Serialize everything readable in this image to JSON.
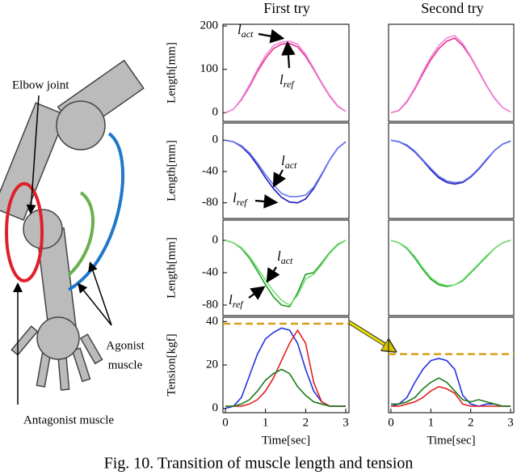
{
  "figure": {
    "column_titles": [
      "First try",
      "Second try"
    ],
    "diagram": {
      "elbow": "Elbow joint",
      "agonist": [
        "Agonist",
        "muscle"
      ],
      "antagonist": "Antagonist muscle"
    },
    "caption": "Fig. 10.  Transition of muscle length and tension"
  },
  "chart_data": [
    {
      "type": "line",
      "ylabel": "Length[mm]",
      "xlim": [
        -0.06,
        3.08
      ],
      "ylim": [
        -20,
        204
      ],
      "yticks": [
        0,
        100,
        200
      ],
      "x": [
        0,
        0.2,
        0.4,
        0.6,
        0.8,
        1.0,
        1.2,
        1.4,
        1.6,
        1.8,
        2.0,
        2.2,
        2.4,
        2.6,
        2.8,
        3.0
      ],
      "series": [
        {
          "color": "#e8308a",
          "values": [
            0,
            8,
            30,
            60,
            95,
            125,
            148,
            158,
            160,
            152,
            130,
            100,
            68,
            38,
            15,
            3
          ]
        },
        {
          "color": "#ee88dd",
          "values": [
            0,
            8,
            32,
            64,
            100,
            132,
            155,
            163,
            165,
            158,
            135,
            103,
            70,
            40,
            16,
            3
          ]
        }
      ],
      "annotations": [
        {
          "text": "l",
          "sub": "act"
        },
        {
          "text": "l",
          "sub": "ref"
        }
      ]
    },
    {
      "type": "line",
      "xlim": [
        -0.06,
        3.08
      ],
      "ylim": [
        -20,
        204
      ],
      "x": [
        0,
        0.2,
        0.4,
        0.6,
        0.8,
        1.0,
        1.2,
        1.4,
        1.6,
        1.8,
        2.0,
        2.2,
        2.4,
        2.6,
        2.8,
        3.0
      ],
      "series": [
        {
          "color": "#e8308a",
          "values": [
            0,
            5,
            25,
            55,
            90,
            122,
            148,
            165,
            172,
            155,
            128,
            95,
            62,
            33,
            12,
            2
          ]
        },
        {
          "color": "#ee88dd",
          "values": [
            0,
            6,
            27,
            58,
            95,
            128,
            155,
            172,
            178,
            160,
            130,
            97,
            63,
            34,
            12,
            2
          ]
        }
      ]
    },
    {
      "type": "line",
      "ylabel": "Length[mm]",
      "xlim": [
        -0.06,
        3.08
      ],
      "ylim": [
        -100,
        22
      ],
      "yticks": [
        0,
        -40,
        -80
      ],
      "x": [
        0,
        0.2,
        0.4,
        0.6,
        0.8,
        1.0,
        1.2,
        1.4,
        1.6,
        1.8,
        2.0,
        2.2,
        2.4,
        2.6,
        2.8,
        3.0
      ],
      "series": [
        {
          "color": "#1a1ab8",
          "values": [
            0,
            -2,
            -8,
            -18,
            -32,
            -48,
            -62,
            -73,
            -79,
            -80,
            -75,
            -62,
            -44,
            -25,
            -10,
            -2
          ]
        },
        {
          "color": "#6677ee",
          "values": [
            0,
            -2,
            -7,
            -16,
            -29,
            -44,
            -57,
            -68,
            -72,
            -72,
            -70,
            -60,
            -43,
            -25,
            -10,
            -2
          ]
        }
      ],
      "annotations": [
        {
          "text": "l",
          "sub": "act"
        },
        {
          "text": "l",
          "sub": "ref"
        }
      ]
    },
    {
      "type": "line",
      "xlim": [
        -0.06,
        3.08
      ],
      "ylim": [
        -100,
        22
      ],
      "x": [
        0,
        0.2,
        0.4,
        0.6,
        0.8,
        1.0,
        1.2,
        1.4,
        1.6,
        1.8,
        2.0,
        2.2,
        2.4,
        2.6,
        2.8,
        3.0
      ],
      "series": [
        {
          "color": "#1a1ab8",
          "values": [
            0,
            -2,
            -7,
            -15,
            -26,
            -38,
            -48,
            -54,
            -56,
            -54,
            -47,
            -37,
            -25,
            -13,
            -5,
            -1
          ]
        },
        {
          "color": "#6677ee",
          "values": [
            0,
            -2,
            -6,
            -14,
            -25,
            -36,
            -46,
            -52,
            -54,
            -53,
            -46,
            -36,
            -24,
            -13,
            -5,
            -1
          ]
        }
      ]
    },
    {
      "type": "line",
      "ylabel": "Length[mm]",
      "xlim": [
        -0.06,
        3.08
      ],
      "ylim": [
        -93,
        25
      ],
      "yticks": [
        0,
        -40,
        -80
      ],
      "x": [
        0,
        0.2,
        0.4,
        0.6,
        0.8,
        1.0,
        1.2,
        1.4,
        1.6,
        1.8,
        2.0,
        2.2,
        2.4,
        2.6,
        2.8,
        3.0
      ],
      "series": [
        {
          "color": "#1f9e1f",
          "values": [
            0,
            -3,
            -10,
            -22,
            -38,
            -55,
            -70,
            -80,
            -82,
            -65,
            -42,
            -40,
            -28,
            -15,
            -5,
            0
          ]
        },
        {
          "color": "#77e077",
          "values": [
            0,
            -3,
            -9,
            -20,
            -34,
            -49,
            -63,
            -74,
            -80,
            -68,
            -48,
            -42,
            -30,
            -16,
            -6,
            0
          ]
        }
      ],
      "annotations": [
        {
          "text": "l",
          "sub": "act"
        },
        {
          "text": "l",
          "sub": "ref"
        }
      ]
    },
    {
      "type": "line",
      "xlim": [
        -0.06,
        3.08
      ],
      "ylim": [
        -93,
        25
      ],
      "x": [
        0,
        0.2,
        0.4,
        0.6,
        0.8,
        1.0,
        1.2,
        1.4,
        1.6,
        1.8,
        2.0,
        2.2,
        2.4,
        2.6,
        2.8,
        3.0
      ],
      "series": [
        {
          "color": "#1f9e1f",
          "values": [
            0,
            -3,
            -10,
            -22,
            -36,
            -48,
            -55,
            -57,
            -55,
            -50,
            -40,
            -30,
            -20,
            -10,
            -3,
            0
          ]
        },
        {
          "color": "#77e077",
          "values": [
            0,
            -3,
            -9,
            -20,
            -34,
            -46,
            -53,
            -56,
            -55,
            -49,
            -39,
            -29,
            -19,
            -10,
            -3,
            0
          ]
        }
      ]
    },
    {
      "type": "line",
      "ylabel": "Tension[kgf]",
      "xlabel": "Time[sec]",
      "xlim": [
        -0.06,
        3.08
      ],
      "ylim": [
        -2,
        42
      ],
      "yticks": [
        0,
        20,
        40
      ],
      "xticks": [
        0,
        1,
        2,
        3
      ],
      "hline": {
        "value": 39,
        "color": "#d4a017"
      },
      "x": [
        0,
        0.2,
        0.4,
        0.6,
        0.8,
        1.0,
        1.2,
        1.4,
        1.6,
        1.8,
        2.0,
        2.2,
        2.4,
        2.6,
        2.8,
        3.0
      ],
      "series": [
        {
          "color": "#2233dd",
          "values": [
            0,
            1,
            5,
            15,
            25,
            32,
            35,
            37,
            36,
            30,
            18,
            8,
            3,
            1,
            1,
            1
          ]
        },
        {
          "color": "#e02020",
          "values": [
            1,
            1,
            1,
            2,
            4,
            8,
            14,
            22,
            30,
            36,
            30,
            12,
            3,
            1,
            1,
            1
          ]
        },
        {
          "color": "#1a7a1a",
          "values": [
            1,
            1,
            2,
            4,
            8,
            13,
            16,
            18,
            16,
            10,
            6,
            3,
            2,
            1,
            1,
            1
          ]
        }
      ]
    },
    {
      "type": "line",
      "xlabel": "Time[sec]",
      "xlim": [
        -0.06,
        3.08
      ],
      "ylim": [
        -2,
        42
      ],
      "xticks": [
        0,
        1,
        2,
        3
      ],
      "hline": {
        "value": 25,
        "color": "#d4a017"
      },
      "x": [
        0,
        0.2,
        0.4,
        0.6,
        0.8,
        1.0,
        1.2,
        1.4,
        1.6,
        1.8,
        2.0,
        2.2,
        2.4,
        2.6,
        2.8,
        3.0
      ],
      "series": [
        {
          "color": "#2233dd",
          "values": [
            1,
            2,
            5,
            12,
            18,
            22,
            23,
            22,
            18,
            6,
            2,
            1,
            2,
            2,
            1,
            1
          ]
        },
        {
          "color": "#e02020",
          "values": [
            1,
            1,
            2,
            3,
            5,
            8,
            10,
            9,
            7,
            2,
            1,
            1,
            1,
            1,
            1,
            1
          ]
        },
        {
          "color": "#1a7a1a",
          "values": [
            2,
            2,
            3,
            5,
            9,
            12,
            14,
            12,
            8,
            4,
            3,
            4,
            3,
            2,
            1,
            1
          ]
        }
      ]
    }
  ]
}
